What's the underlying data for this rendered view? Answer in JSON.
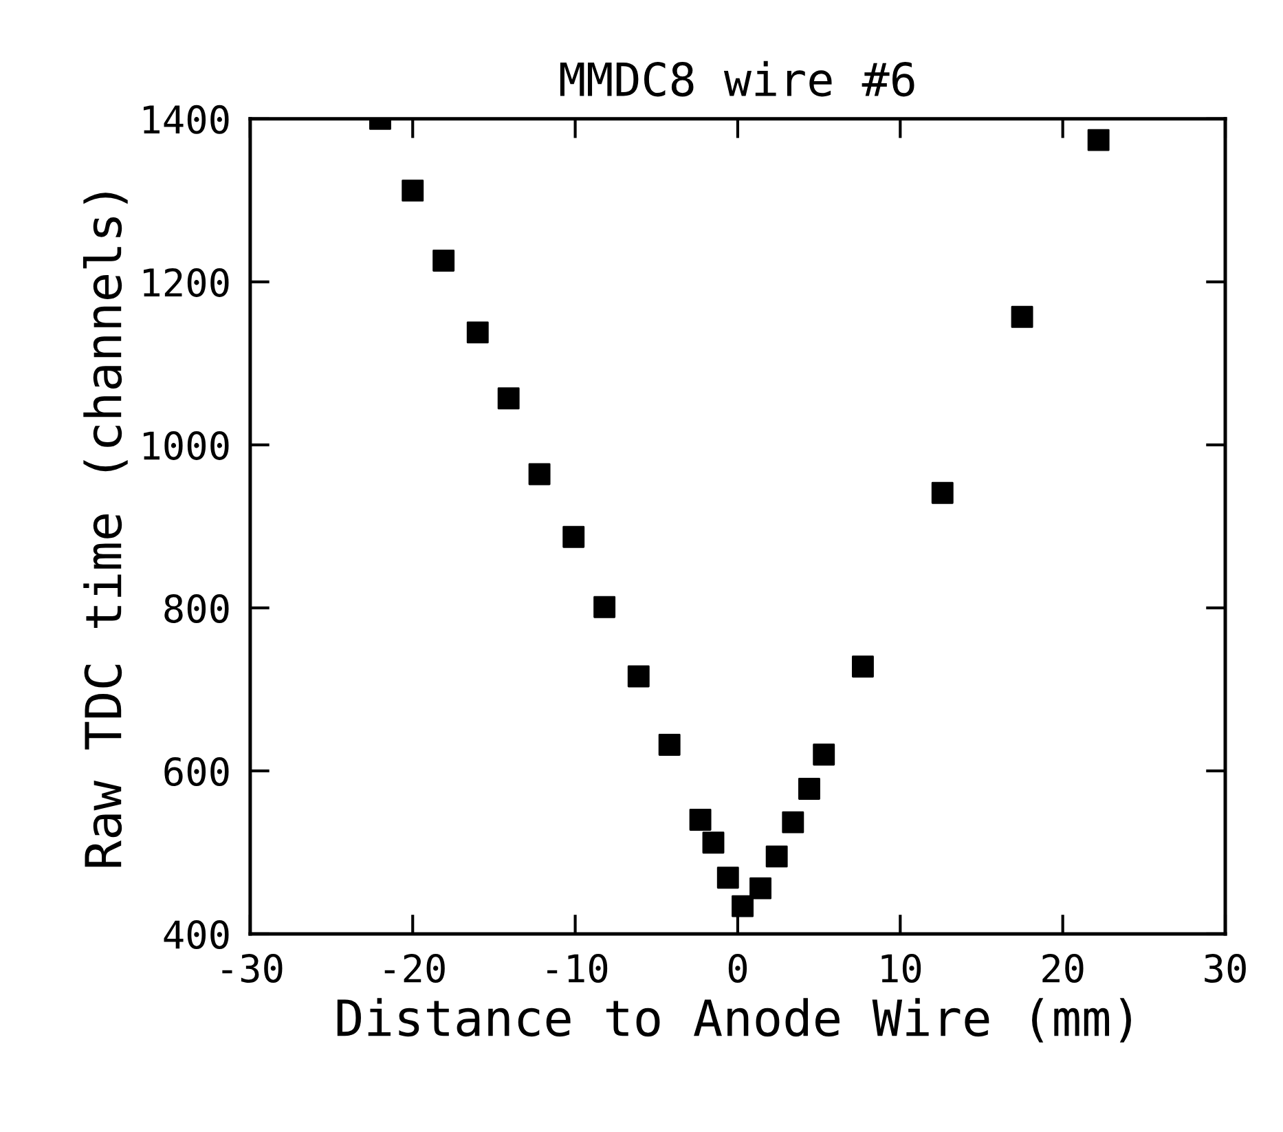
{
  "chart_data": {
    "type": "scatter",
    "title": "MMDC8 wire #6",
    "xlabel": "Distance to Anode Wire (mm)",
    "ylabel": "Raw TDC time (channels)",
    "x": [
      -22.0,
      -20.0,
      -18.1,
      -16.0,
      -14.1,
      -12.2,
      -10.1,
      -8.2,
      -6.1,
      -4.2,
      -2.3,
      -1.5,
      -0.6,
      0.3,
      1.4,
      2.4,
      3.4,
      4.4,
      5.3,
      7.7,
      12.6,
      17.5,
      22.2
    ],
    "series": [
      {
        "color": "#000000",
        "values": [
          1400,
          1312,
          1226,
          1138,
          1057,
          964,
          887,
          801,
          716,
          632,
          540,
          512,
          469,
          434,
          456,
          495,
          537,
          578,
          620,
          728,
          941,
          1157,
          1374
        ]
      }
    ],
    "xlim": [
      -30,
      30
    ],
    "xticks": [
      -30,
      -20,
      -10,
      0,
      10,
      20,
      30
    ],
    "ylim": [
      400,
      1400
    ],
    "yticks": [
      400,
      600,
      800,
      1000,
      1200,
      1400
    ],
    "marker": "square",
    "grid": false,
    "legend": false
  }
}
